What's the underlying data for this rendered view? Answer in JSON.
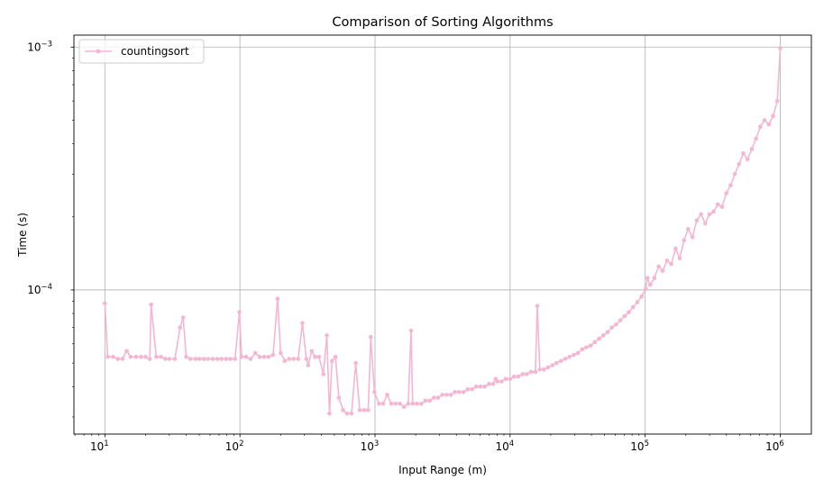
{
  "chart_data": {
    "type": "line",
    "title": "Comparison of Sorting Algorithms",
    "xlabel": "Input Range (m)",
    "ylabel": "Time (s)",
    "x_scale": "log",
    "y_scale": "log",
    "xlim": [
      5.9,
      1700000
    ],
    "ylim": [
      2.55e-05,
      0.00112
    ],
    "grid": true,
    "legend_position": "upper left",
    "x_ticks": [
      {
        "value": 10,
        "base": "10",
        "exp": "1"
      },
      {
        "value": 100,
        "base": "10",
        "exp": "2"
      },
      {
        "value": 1000,
        "base": "10",
        "exp": "3"
      },
      {
        "value": 10000,
        "base": "10",
        "exp": "4"
      },
      {
        "value": 100000,
        "base": "10",
        "exp": "5"
      },
      {
        "value": 1000000,
        "base": "10",
        "exp": "6"
      }
    ],
    "y_ticks": [
      {
        "value": 0.0001,
        "base": "10",
        "exp": "−4"
      },
      {
        "value": 0.001,
        "base": "10",
        "exp": "−3"
      }
    ],
    "series": [
      {
        "name": "countingsort",
        "color": "#f4b6d2",
        "marker": "circle",
        "points": [
          [
            10,
            8.8e-05
          ],
          [
            10.5,
            5.3e-05
          ],
          [
            11.5,
            5.3e-05
          ],
          [
            12.5,
            5.2e-05
          ],
          [
            13.5,
            5.2e-05
          ],
          [
            14.5,
            5.6e-05
          ],
          [
            15.5,
            5.3e-05
          ],
          [
            17,
            5.3e-05
          ],
          [
            18.5,
            5.3e-05
          ],
          [
            20,
            5.3e-05
          ],
          [
            21.5,
            5.2e-05
          ],
          [
            22,
            8.7e-05
          ],
          [
            24,
            5.3e-05
          ],
          [
            26,
            5.3e-05
          ],
          [
            28,
            5.2e-05
          ],
          [
            30,
            5.2e-05
          ],
          [
            33,
            5.2e-05
          ],
          [
            36,
            7e-05
          ],
          [
            38,
            7.7e-05
          ],
          [
            40,
            5.3e-05
          ],
          [
            43,
            5.2e-05
          ],
          [
            47,
            5.2e-05
          ],
          [
            50,
            5.2e-05
          ],
          [
            54,
            5.2e-05
          ],
          [
            58,
            5.2e-05
          ],
          [
            63,
            5.2e-05
          ],
          [
            68,
            5.2e-05
          ],
          [
            73,
            5.2e-05
          ],
          [
            79,
            5.2e-05
          ],
          [
            85,
            5.2e-05
          ],
          [
            92,
            5.2e-05
          ],
          [
            99,
            8.1e-05
          ],
          [
            103,
            5.3e-05
          ],
          [
            111,
            5.3e-05
          ],
          [
            120,
            5.2e-05
          ],
          [
            130,
            5.5e-05
          ],
          [
            140,
            5.3e-05
          ],
          [
            151,
            5.3e-05
          ],
          [
            163,
            5.3e-05
          ],
          [
            176,
            5.4e-05
          ],
          [
            190,
            9.2e-05
          ],
          [
            200,
            5.5e-05
          ],
          [
            215,
            5.1e-05
          ],
          [
            232,
            5.2e-05
          ],
          [
            250,
            5.2e-05
          ],
          [
            270,
            5.2e-05
          ],
          [
            290,
            7.3e-05
          ],
          [
            310,
            5.2e-05
          ],
          [
            320,
            4.9e-05
          ],
          [
            340,
            5.6e-05
          ],
          [
            360,
            5.3e-05
          ],
          [
            385,
            5.3e-05
          ],
          [
            415,
            4.5e-05
          ],
          [
            440,
            6.5e-05
          ],
          [
            460,
            3.1e-05
          ],
          [
            480,
            5.1e-05
          ],
          [
            510,
            5.3e-05
          ],
          [
            540,
            3.6e-05
          ],
          [
            580,
            3.2e-05
          ],
          [
            620,
            3.1e-05
          ],
          [
            670,
            3.1e-05
          ],
          [
            720,
            5e-05
          ],
          [
            770,
            3.2e-05
          ],
          [
            830,
            3.2e-05
          ],
          [
            890,
            3.2e-05
          ],
          [
            930,
            6.4e-05
          ],
          [
            990,
            3.8e-05
          ],
          [
            1070,
            3.4e-05
          ],
          [
            1150,
            3.4e-05
          ],
          [
            1230,
            3.7e-05
          ],
          [
            1320,
            3.4e-05
          ],
          [
            1420,
            3.4e-05
          ],
          [
            1530,
            3.4e-05
          ],
          [
            1640,
            3.3e-05
          ],
          [
            1760,
            3.4e-05
          ],
          [
            1850,
            6.8e-05
          ],
          [
            1900,
            3.4e-05
          ],
          [
            2040,
            3.4e-05
          ],
          [
            2200,
            3.4e-05
          ],
          [
            2360,
            3.5e-05
          ],
          [
            2540,
            3.5e-05
          ],
          [
            2730,
            3.6e-05
          ],
          [
            2930,
            3.6e-05
          ],
          [
            3150,
            3.7e-05
          ],
          [
            3390,
            3.7e-05
          ],
          [
            3640,
            3.7e-05
          ],
          [
            3910,
            3.8e-05
          ],
          [
            4200,
            3.8e-05
          ],
          [
            4520,
            3.8e-05
          ],
          [
            4860,
            3.9e-05
          ],
          [
            5220,
            3.9e-05
          ],
          [
            5610,
            4e-05
          ],
          [
            6030,
            4e-05
          ],
          [
            6480,
            4e-05
          ],
          [
            6970,
            4.1e-05
          ],
          [
            7490,
            4.1e-05
          ],
          [
            7800,
            4.3e-05
          ],
          [
            8050,
            4.2e-05
          ],
          [
            8650,
            4.2e-05
          ],
          [
            9300,
            4.3e-05
          ],
          [
            10000,
            4.3e-05
          ],
          [
            10700,
            4.4e-05
          ],
          [
            11500,
            4.4e-05
          ],
          [
            12400,
            4.5e-05
          ],
          [
            13300,
            4.5e-05
          ],
          [
            14300,
            4.6e-05
          ],
          [
            15400,
            4.6e-05
          ],
          [
            15900,
            8.6e-05
          ],
          [
            16600,
            4.7e-05
          ],
          [
            17800,
            4.7e-05
          ],
          [
            19100,
            4.8e-05
          ],
          [
            20600,
            4.9e-05
          ],
          [
            22100,
            5e-05
          ],
          [
            23800,
            5.1e-05
          ],
          [
            25600,
            5.2e-05
          ],
          [
            27500,
            5.3e-05
          ],
          [
            29600,
            5.4e-05
          ],
          [
            31800,
            5.5e-05
          ],
          [
            34200,
            5.7e-05
          ],
          [
            36700,
            5.8e-05
          ],
          [
            39500,
            5.9e-05
          ],
          [
            42400,
            6.1e-05
          ],
          [
            45600,
            6.3e-05
          ],
          [
            49000,
            6.5e-05
          ],
          [
            52700,
            6.7e-05
          ],
          [
            56700,
            7e-05
          ],
          [
            60900,
            7.2e-05
          ],
          [
            65500,
            7.5e-05
          ],
          [
            70400,
            7.8e-05
          ],
          [
            75700,
            8.1e-05
          ],
          [
            81400,
            8.5e-05
          ],
          [
            87500,
            8.9e-05
          ],
          [
            94100,
            9.4e-05
          ],
          [
            101000,
            0.000101
          ],
          [
            104000,
            0.000112
          ],
          [
            109000,
            0.000105
          ],
          [
            117000,
            0.000112
          ],
          [
            126000,
            0.000125
          ],
          [
            135000,
            0.00012
          ],
          [
            145000,
            0.000132
          ],
          [
            156000,
            0.000128
          ],
          [
            168000,
            0.000148
          ],
          [
            180000,
            0.000135
          ],
          [
            194000,
            0.00016
          ],
          [
            208000,
            0.000178
          ],
          [
            224000,
            0.000165
          ],
          [
            241000,
            0.000193
          ],
          [
            259000,
            0.000205
          ],
          [
            278000,
            0.000188
          ],
          [
            299000,
            0.000205
          ],
          [
            321000,
            0.00021
          ],
          [
            345000,
            0.000225
          ],
          [
            371000,
            0.00022
          ],
          [
            399000,
            0.00025
          ],
          [
            429000,
            0.00027
          ],
          [
            461000,
            0.0003
          ],
          [
            496000,
            0.00033
          ],
          [
            533000,
            0.000365
          ],
          [
            573000,
            0.000345
          ],
          [
            616000,
            0.00038
          ],
          [
            662000,
            0.00042
          ],
          [
            712000,
            0.00047
          ],
          [
            765000,
            0.0005
          ],
          [
            823000,
            0.00048
          ],
          [
            885000,
            0.00052
          ],
          [
            951000,
            0.0006
          ],
          [
            1000000,
            0.00099
          ]
        ]
      }
    ]
  }
}
